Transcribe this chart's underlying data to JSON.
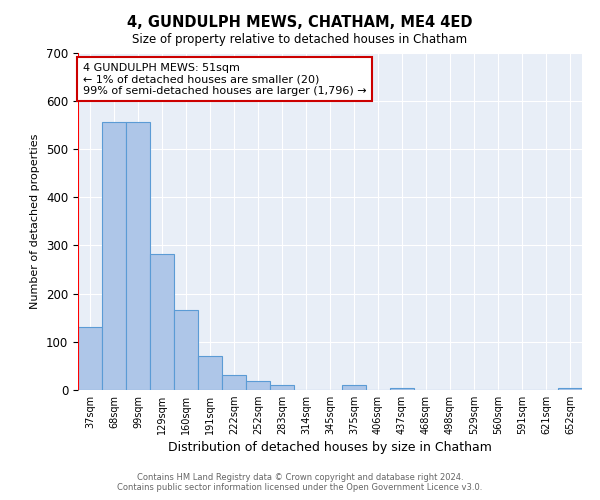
{
  "title": "4, GUNDULPH MEWS, CHATHAM, ME4 4ED",
  "subtitle": "Size of property relative to detached houses in Chatham",
  "xlabel": "Distribution of detached houses by size in Chatham",
  "ylabel": "Number of detached properties",
  "bar_labels": [
    "37sqm",
    "68sqm",
    "99sqm",
    "129sqm",
    "160sqm",
    "191sqm",
    "222sqm",
    "252sqm",
    "283sqm",
    "314sqm",
    "345sqm",
    "375sqm",
    "406sqm",
    "437sqm",
    "468sqm",
    "498sqm",
    "529sqm",
    "560sqm",
    "591sqm",
    "621sqm",
    "652sqm"
  ],
  "bar_values": [
    130,
    555,
    555,
    283,
    165,
    70,
    32,
    19,
    10,
    0,
    0,
    10,
    0,
    5,
    0,
    0,
    0,
    0,
    0,
    0,
    5
  ],
  "bar_color": "#aec6e8",
  "bar_edgecolor": "#5b9bd5",
  "ylim": [
    0,
    700
  ],
  "yticks": [
    0,
    100,
    200,
    300,
    400,
    500,
    600,
    700
  ],
  "annotation_text": "4 GUNDULPH MEWS: 51sqm\n← 1% of detached houses are smaller (20)\n99% of semi-detached houses are larger (1,796) →",
  "annotation_box_color": "#ffffff",
  "annotation_box_edgecolor": "#cc0000",
  "footer_line1": "Contains HM Land Registry data © Crown copyright and database right 2024.",
  "footer_line2": "Contains public sector information licensed under the Open Government Licence v3.0.",
  "plot_bg_color": "#e8eef7",
  "fig_bg_color": "#ffffff",
  "grid_color": "#ffffff"
}
